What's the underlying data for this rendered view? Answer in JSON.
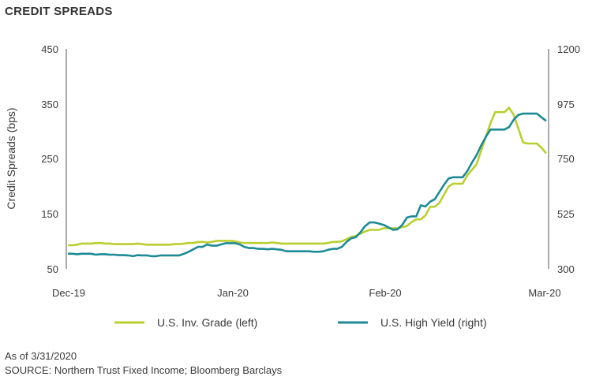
{
  "title": "CREDIT SPREADS",
  "footnotes": {
    "as_of": "As of 3/31/2020",
    "source": "SOURCE: Northern Trust Fixed Income; Bloomberg Barclays"
  },
  "colors": {
    "inv_grade": "#b9cf2e",
    "high_yield": "#1d8a96",
    "axis": "#555555"
  },
  "chart_data": {
    "type": "line",
    "title": "CREDIT SPREADS",
    "ylabel": "Credit Spreads (bps)",
    "ylabel_right": "",
    "ylim": [
      50,
      450
    ],
    "ylim_right": [
      300,
      1200
    ],
    "yticks_left": [
      "450",
      "350",
      "250",
      "150",
      "50"
    ],
    "yticks_right": [
      "1200",
      "975",
      "750",
      "525",
      "300"
    ],
    "xticks": [
      "Dec-19",
      "Jan-20",
      "Feb-20",
      "Mar-20"
    ],
    "grid": false,
    "legend_position": "bottom",
    "series": [
      {
        "name": "U.S. Inv. Grade (left)",
        "axis": "left",
        "values": [
          93,
          93,
          94,
          96,
          96,
          96,
          97,
          97,
          96,
          96,
          95,
          95,
          95,
          95,
          95,
          96,
          95,
          94,
          94,
          94,
          94,
          94,
          94,
          95,
          95,
          96,
          97,
          97,
          99,
          99,
          98,
          99,
          101,
          101,
          101,
          101,
          100,
          98,
          97,
          97,
          97,
          97,
          97,
          97,
          98,
          97,
          96,
          96,
          96,
          96,
          96,
          96,
          96,
          96,
          96,
          96,
          97,
          99,
          99,
          100,
          104,
          108,
          110,
          114,
          118,
          121,
          121,
          121,
          124,
          124,
          124,
          124,
          126,
          128,
          135,
          140,
          140,
          147,
          163,
          163,
          170,
          185,
          200,
          205,
          205,
          205,
          220,
          230,
          240,
          265,
          290,
          315,
          335,
          335,
          335,
          343,
          330,
          305,
          280,
          278,
          278,
          278,
          270,
          260
        ]
      },
      {
        "name": "U.S. High Yield (right)",
        "axis": "right",
        "values": [
          362,
          362,
          360,
          362,
          362,
          362,
          358,
          360,
          360,
          358,
          358,
          356,
          356,
          355,
          352,
          356,
          355,
          355,
          352,
          352,
          355,
          355,
          355,
          355,
          355,
          362,
          370,
          380,
          390,
          390,
          400,
          395,
          395,
          400,
          405,
          405,
          405,
          400,
          390,
          385,
          385,
          382,
          382,
          380,
          382,
          380,
          378,
          372,
          372,
          372,
          372,
          372,
          372,
          370,
          370,
          372,
          378,
          382,
          382,
          390,
          410,
          425,
          430,
          450,
          475,
          490,
          490,
          485,
          480,
          470,
          460,
          462,
          480,
          510,
          515,
          515,
          560,
          555,
          575,
          585,
          615,
          645,
          670,
          675,
          675,
          675,
          700,
          735,
          765,
          805,
          840,
          870,
          870,
          870,
          870,
          880,
          910,
          930,
          935,
          935,
          935,
          935,
          920,
          905
        ]
      }
    ]
  }
}
